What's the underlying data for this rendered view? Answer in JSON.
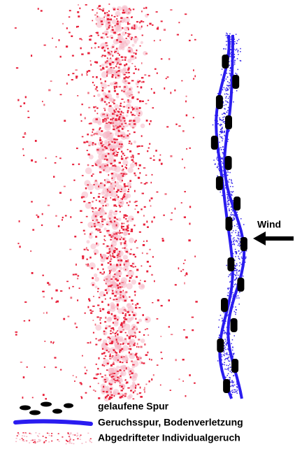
{
  "wind_label": "Wind",
  "legend": [
    {
      "label": "gelaufene Spur"
    },
    {
      "label": "Geruchsspur, Bodenverletzung"
    },
    {
      "label": "Abgedrifteter Individualgeruch"
    }
  ]
}
